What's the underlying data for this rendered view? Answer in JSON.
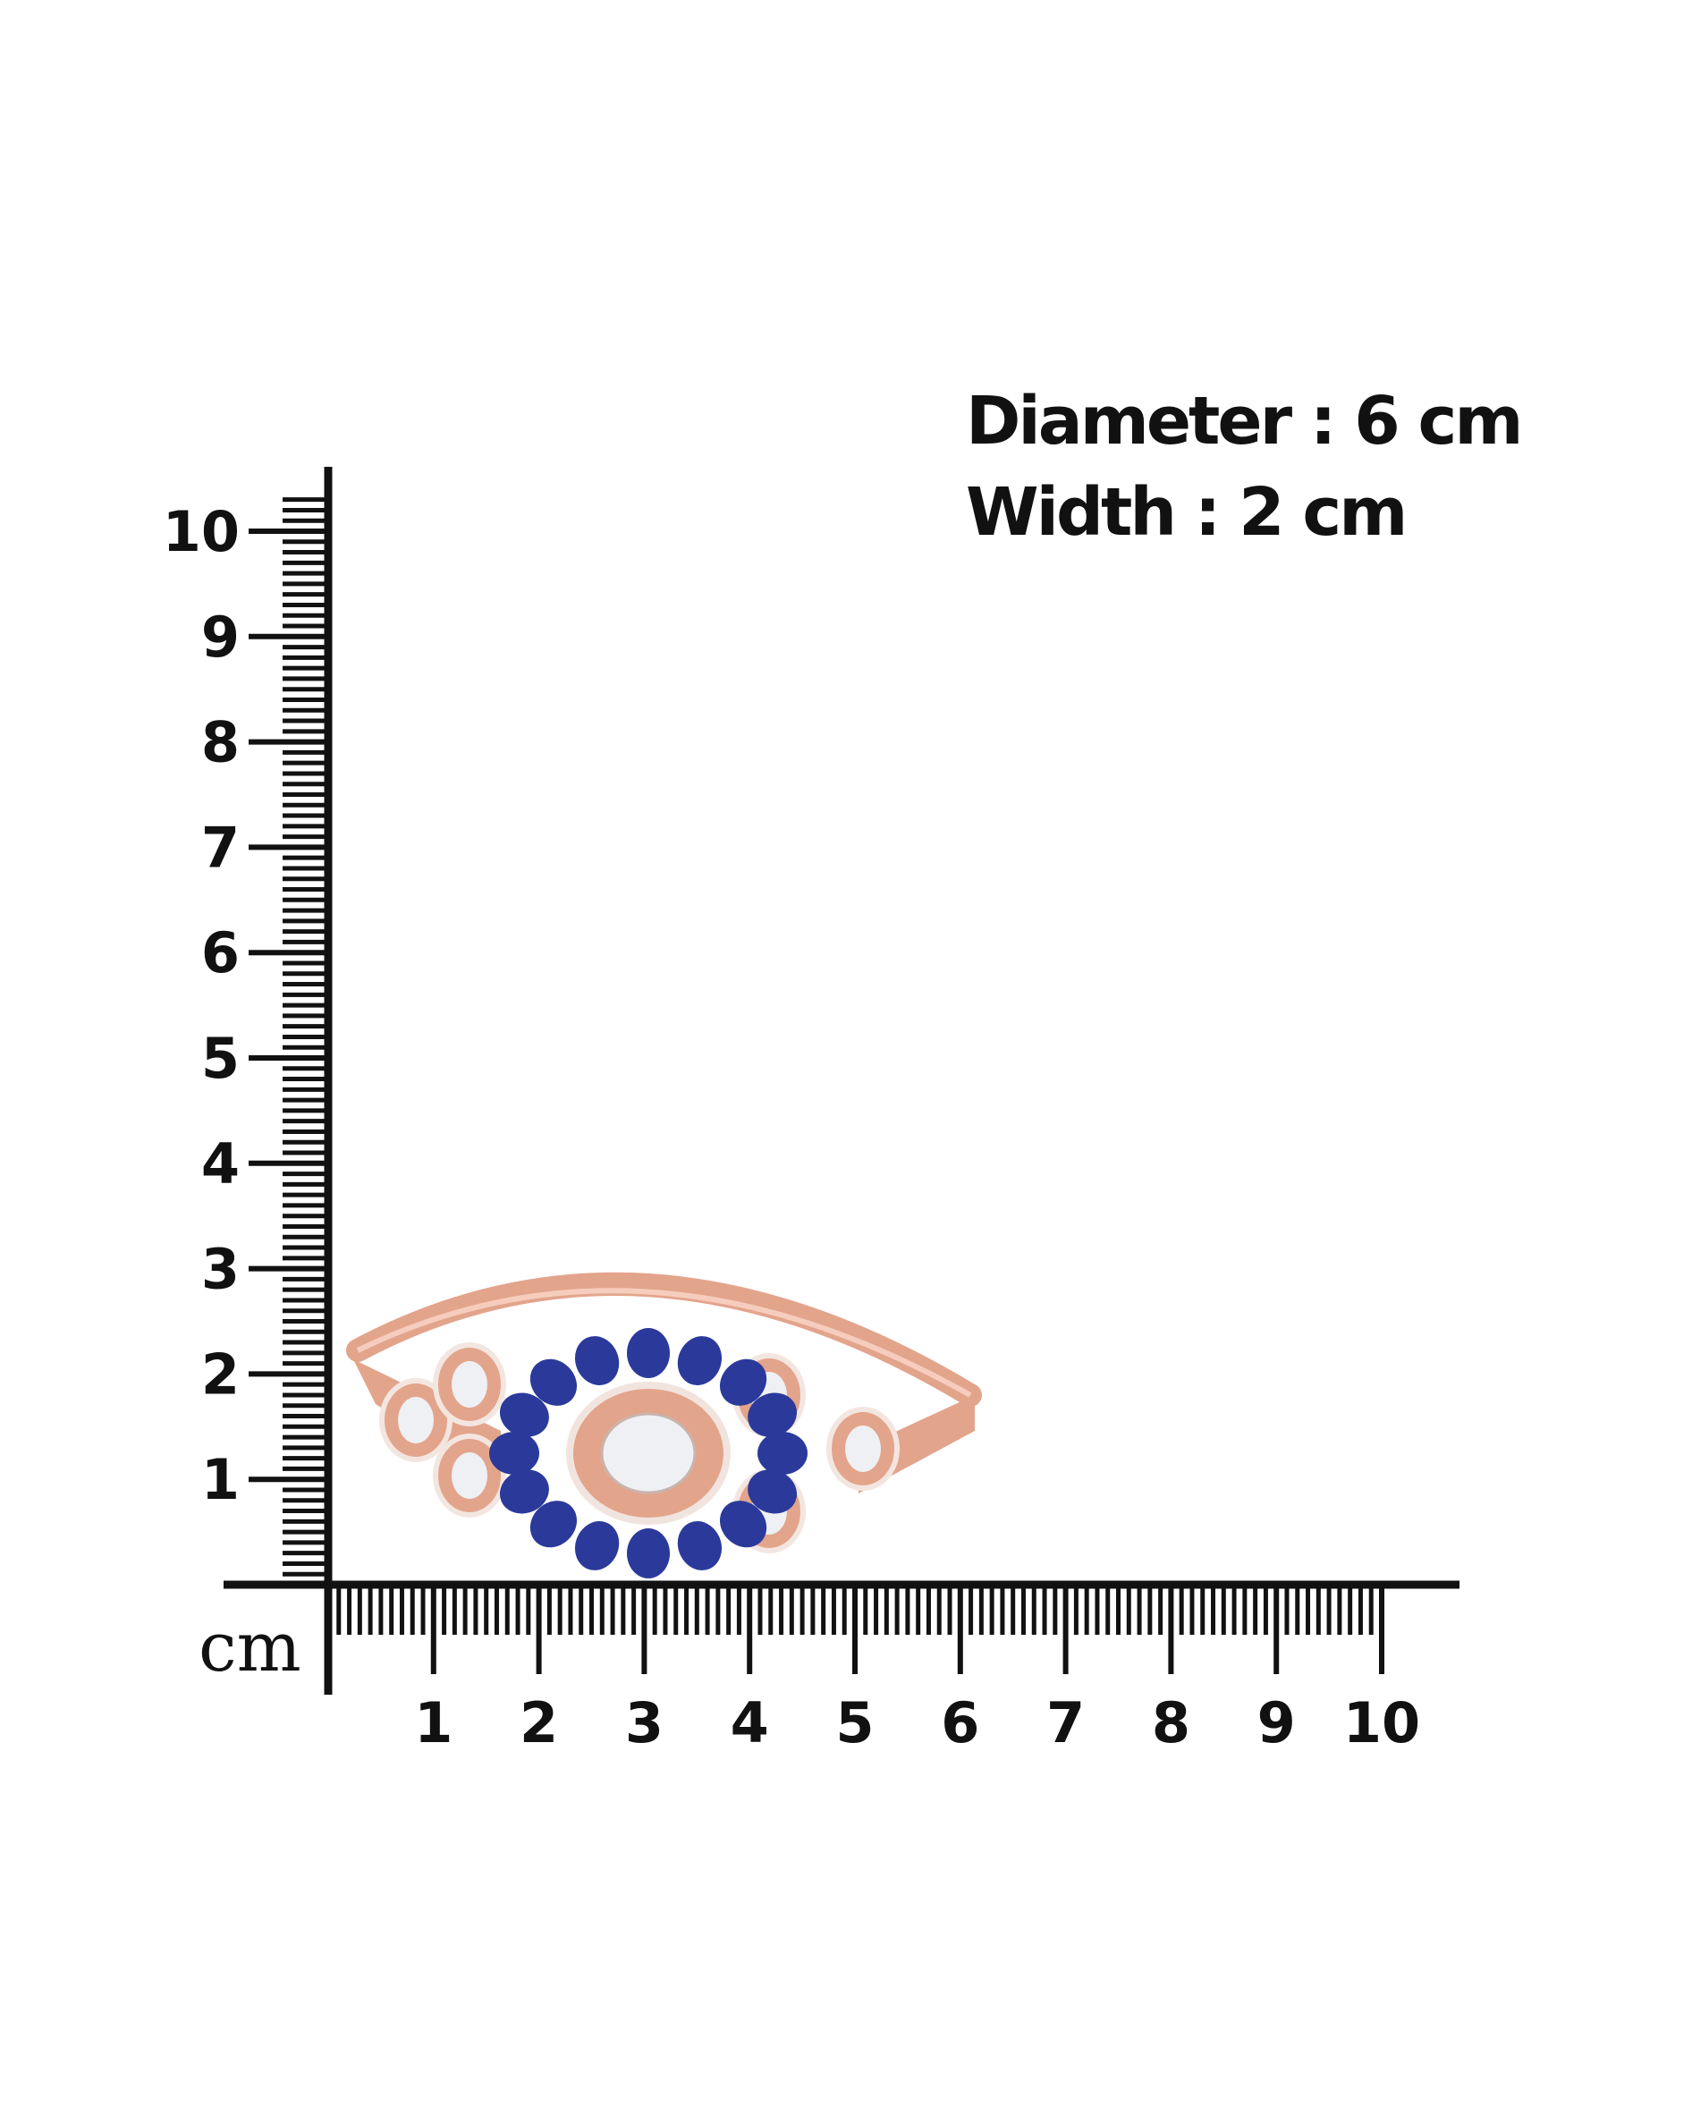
{
  "specs": {
    "diameter": "Diameter : 6 cm",
    "width": "Width : 2 cm"
  },
  "ruler": {
    "unit": "cm",
    "vertical_labels": [
      "1",
      "2",
      "3",
      "4",
      "5",
      "6",
      "7",
      "8",
      "9",
      "10"
    ],
    "horizontal_labels": [
      "1",
      "2",
      "3",
      "4",
      "5",
      "6",
      "7",
      "8",
      "9",
      "10"
    ]
  },
  "product": {
    "type": "bangle bracelet",
    "metal_color": "#e3a48c",
    "stone_color": "#2b3a9a",
    "center_stone_color": "#eef0f4"
  }
}
